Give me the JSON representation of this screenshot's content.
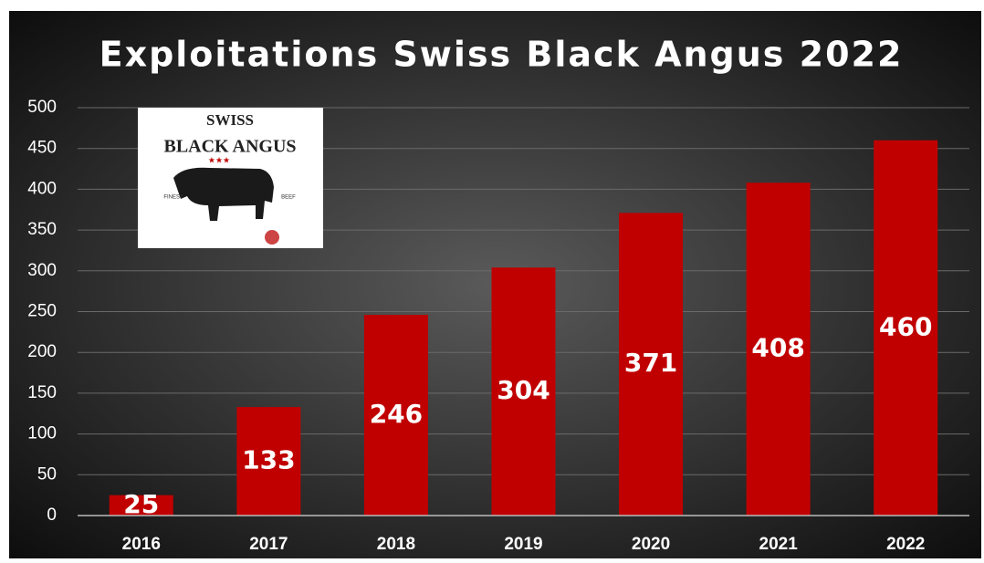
{
  "chart_data": {
    "type": "bar",
    "title": "Exploitations Swiss Black Angus 2022",
    "categories": [
      "2016",
      "2017",
      "2018",
      "2019",
      "2020",
      "2021",
      "2022"
    ],
    "values": [
      25,
      133,
      246,
      304,
      371,
      408,
      460
    ],
    "color": "#c00000",
    "ylim": [
      0,
      500
    ],
    "yticks": [
      0,
      50,
      100,
      150,
      200,
      250,
      300,
      350,
      400,
      450,
      500
    ],
    "grid": true
  },
  "logo": {
    "lines": [
      "SWISS",
      "BLACK ANGUS",
      "FINEST",
      "BEEF"
    ]
  }
}
